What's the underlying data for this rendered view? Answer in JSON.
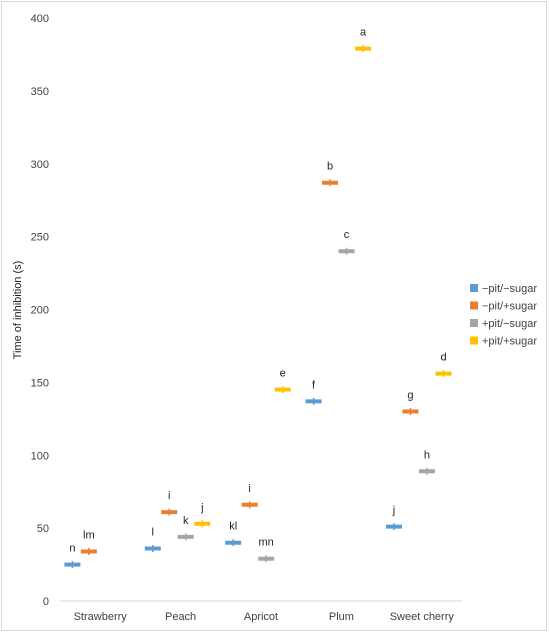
{
  "chart_data": {
    "type": "scatter",
    "title": "",
    "xlabel": "",
    "ylabel": "Time of inhibition (s)",
    "ylim": [
      0,
      400
    ],
    "yticks": [
      0,
      50,
      100,
      150,
      200,
      250,
      300,
      350,
      400
    ],
    "grid": false,
    "legend_position": "right",
    "categories": [
      "Strawberry",
      "Peach",
      "Apricot",
      "Plum",
      "Sweet cherry"
    ],
    "series": [
      {
        "name": "−pit/−sugar",
        "color": "#5b9bd5",
        "values": [
          25,
          36,
          40,
          137,
          51
        ],
        "labels": [
          "n",
          "l",
          "kl",
          "f",
          "j"
        ]
      },
      {
        "name": "−pit/+sugar",
        "color": "#ed7d31",
        "values": [
          34,
          61,
          66,
          287,
          130
        ],
        "labels": [
          "lm",
          "i",
          "i",
          "b",
          "g"
        ]
      },
      {
        "name": "+pit/−sugar",
        "color": "#a5a5a5",
        "values": [
          null,
          44,
          29,
          240,
          89
        ],
        "labels": [
          "",
          "k",
          "mn",
          "c",
          "h"
        ]
      },
      {
        "name": "+pit/+sugar",
        "color": "#ffc000",
        "values": [
          null,
          53,
          145,
          379,
          156
        ],
        "labels": [
          "",
          "j",
          "e",
          "a",
          "d"
        ]
      }
    ]
  }
}
